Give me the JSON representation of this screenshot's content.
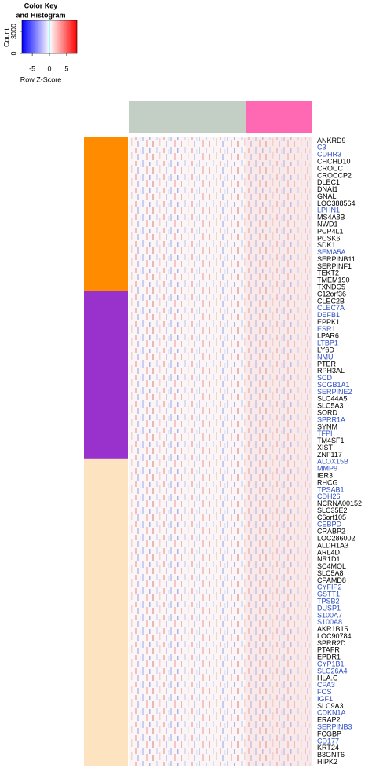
{
  "chart_data": {
    "type": "heatmap",
    "color_key": {
      "title": [
        "Color Key",
        "and Histogram"
      ],
      "ylabel": "Count",
      "xlabel": "Row Z-Score",
      "xlim": [
        -8,
        8
      ],
      "xticks": [
        -5,
        0,
        5
      ],
      "ylim": [
        0,
        4500
      ],
      "yticks": [
        0,
        3000
      ],
      "colors": [
        "#0000ff",
        "#ffffff",
        "#ff0000"
      ]
    },
    "col_groups": [
      {
        "color": "#c3cfc4"
      },
      {
        "color": "#ff69b4"
      }
    ],
    "row_groups": [
      {
        "color": "#ff8c00",
        "genes": [
          {
            "label": "ANKRD9",
            "color": "#000000"
          },
          {
            "label": "C3",
            "color": "#2c4fc4"
          },
          {
            "label": "CDHR3",
            "color": "#2c4fc4"
          },
          {
            "label": "CHCHD10",
            "color": "#000000"
          },
          {
            "label": "CROCC",
            "color": "#000000"
          },
          {
            "label": "CROCCP2",
            "color": "#000000"
          },
          {
            "label": "DLEC1",
            "color": "#000000"
          },
          {
            "label": "DNAI1",
            "color": "#000000"
          },
          {
            "label": "GNAL",
            "color": "#000000"
          },
          {
            "label": "LOC388564",
            "color": "#000000"
          },
          {
            "label": "LPHN1",
            "color": "#2c4fc4"
          },
          {
            "label": "MS4A8B",
            "color": "#000000"
          },
          {
            "label": "NWD1",
            "color": "#000000"
          },
          {
            "label": "PCP4L1",
            "color": "#000000"
          },
          {
            "label": "PCSK6",
            "color": "#000000"
          },
          {
            "label": "SDK1",
            "color": "#000000"
          },
          {
            "label": "SEMA5A",
            "color": "#2c4fc4"
          },
          {
            "label": "SERPINB11",
            "color": "#000000"
          },
          {
            "label": "SERPINF1",
            "color": "#000000"
          },
          {
            "label": "TEKT2",
            "color": "#000000"
          },
          {
            "label": "TMEM190",
            "color": "#000000"
          },
          {
            "label": "TXNDC5",
            "color": "#000000"
          }
        ]
      },
      {
        "color": "#9932cc",
        "genes": [
          {
            "label": "C12orf36",
            "color": "#000000"
          },
          {
            "label": "CLEC2B",
            "color": "#000000"
          },
          {
            "label": "CLEC7A",
            "color": "#2c4fc4"
          },
          {
            "label": "DEFB1",
            "color": "#2c4fc4"
          },
          {
            "label": "EPPK1",
            "color": "#000000"
          },
          {
            "label": "ESR1",
            "color": "#2c4fc4"
          },
          {
            "label": "LPAR6",
            "color": "#000000"
          },
          {
            "label": "LTBP1",
            "color": "#2c4fc4"
          },
          {
            "label": "LY6D",
            "color": "#000000"
          },
          {
            "label": "NMU",
            "color": "#2c4fc4"
          },
          {
            "label": "PTER",
            "color": "#000000"
          },
          {
            "label": "RPH3AL",
            "color": "#000000"
          },
          {
            "label": "SCD",
            "color": "#2c4fc4"
          },
          {
            "label": "SCGB1A1",
            "color": "#2c4fc4"
          },
          {
            "label": "SERPINE2",
            "color": "#2c4fc4"
          },
          {
            "label": "SLC44A5",
            "color": "#000000"
          },
          {
            "label": "SLC5A3",
            "color": "#000000"
          },
          {
            "label": "SORD",
            "color": "#000000"
          },
          {
            "label": "SPRR1A",
            "color": "#2c4fc4"
          },
          {
            "label": "SYNM",
            "color": "#000000"
          },
          {
            "label": "TFPI",
            "color": "#2c4fc4"
          },
          {
            "label": "TM4SF1",
            "color": "#000000"
          },
          {
            "label": "XIST",
            "color": "#000000"
          },
          {
            "label": "ZNF117",
            "color": "#000000"
          }
        ]
      },
      {
        "color": "#fde3c0",
        "genes": [
          {
            "label": "ALOX15B",
            "color": "#2c4fc4"
          },
          {
            "label": "MMP9",
            "color": "#2c4fc4"
          },
          {
            "label": "IER3",
            "color": "#000000"
          },
          {
            "label": "RHCG",
            "color": "#000000"
          },
          {
            "label": "TPSAB1",
            "color": "#2c4fc4"
          },
          {
            "label": "CDH26",
            "color": "#2c4fc4"
          },
          {
            "label": "NCRNA00152",
            "color": "#000000"
          },
          {
            "label": "SLC35E2",
            "color": "#000000"
          },
          {
            "label": "C6orf105",
            "color": "#000000"
          },
          {
            "label": "CEBPD",
            "color": "#2c4fc4"
          },
          {
            "label": "CRABP2",
            "color": "#000000"
          },
          {
            "label": "LOC286002",
            "color": "#000000"
          },
          {
            "label": "ALDH1A3",
            "color": "#000000"
          },
          {
            "label": "ARL4D",
            "color": "#000000"
          },
          {
            "label": "NR1D1",
            "color": "#000000"
          },
          {
            "label": "SC4MOL",
            "color": "#000000"
          },
          {
            "label": "SLC5A8",
            "color": "#000000"
          },
          {
            "label": "CPAMD8",
            "color": "#000000"
          },
          {
            "label": "CYFIP2",
            "color": "#2c4fc4"
          },
          {
            "label": "GSTT1",
            "color": "#2c4fc4"
          },
          {
            "label": "TPSB2",
            "color": "#2c4fc4"
          },
          {
            "label": "DUSP1",
            "color": "#2c4fc4"
          },
          {
            "label": "S100A7",
            "color": "#2c4fc4"
          },
          {
            "label": "S100A8",
            "color": "#2c4fc4"
          },
          {
            "label": "AKR1B15",
            "color": "#000000"
          },
          {
            "label": "LOC90784",
            "color": "#000000"
          },
          {
            "label": "SPRR2D",
            "color": "#000000"
          },
          {
            "label": "PTAFR",
            "color": "#000000"
          },
          {
            "label": "EPDR1",
            "color": "#000000"
          },
          {
            "label": "CYP1B1",
            "color": "#2c4fc4"
          },
          {
            "label": "SLC26A4",
            "color": "#2c4fc4"
          },
          {
            "label": "HLA.C",
            "color": "#000000"
          },
          {
            "label": "CPA3",
            "color": "#2c4fc4"
          },
          {
            "label": "FOS",
            "color": "#2c4fc4"
          },
          {
            "label": "IGF1",
            "color": "#2c4fc4"
          },
          {
            "label": "SLC9A3",
            "color": "#000000"
          },
          {
            "label": "CDKN1A",
            "color": "#2c4fc4"
          },
          {
            "label": "ERAP2",
            "color": "#000000"
          },
          {
            "label": "SERPINB3",
            "color": "#2c4fc4"
          },
          {
            "label": "FCGBP",
            "color": "#000000"
          },
          {
            "label": "CD177",
            "color": "#2c4fc4"
          },
          {
            "label": "KRT24",
            "color": "#000000"
          },
          {
            "label": "B3GNT6",
            "color": "#000000"
          },
          {
            "label": "HIPK2",
            "color": "#000000"
          }
        ]
      }
    ]
  }
}
